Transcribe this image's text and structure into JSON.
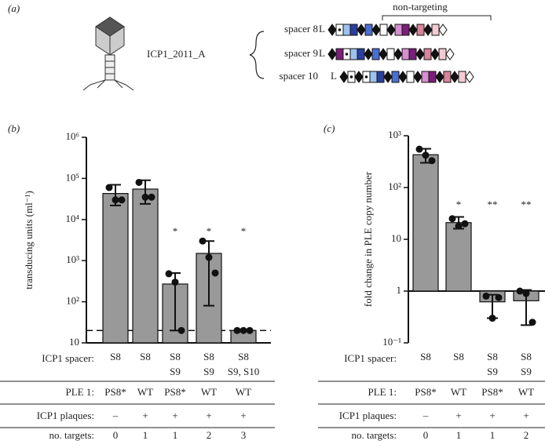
{
  "panel_a": {
    "label": "(a)",
    "phage": "ICP1_2011_A",
    "heading": "non-targeting",
    "spacers": [
      {
        "name": "spacer 8",
        "leader": "L"
      },
      {
        "name": "spacer 9",
        "leader": "L"
      },
      {
        "name": "spacer 10",
        "leader": "L"
      }
    ]
  },
  "chart_data": [
    {
      "type": "bar",
      "label": "(b)",
      "y_label": "transducing units (ml⁻¹)",
      "log_y": true,
      "color": "#999999",
      "ylim": [
        10,
        1000000
      ],
      "yticks": [
        10,
        {
          "value": 100,
          "label": "10²"
        },
        {
          "value": 1000,
          "label": "10³"
        },
        {
          "value": 10000,
          "label": "10⁴"
        },
        {
          "value": 100000,
          "label": "10⁵"
        },
        {
          "value": 1000000,
          "label": "10⁶"
        }
      ],
      "reference_line": 20,
      "categories": [
        [
          "S8"
        ],
        [
          "S8"
        ],
        [
          "S8",
          "S9"
        ],
        [
          "S8",
          "S9"
        ],
        [
          "S8",
          "S9, S10"
        ]
      ],
      "values": [
        43000,
        55000,
        270,
        1500,
        20
      ],
      "error_ranges": [
        [
          22000,
          70000
        ],
        [
          24000,
          90000
        ],
        [
          20,
          500
        ],
        [
          80,
          3000
        ],
        [
          20,
          20
        ]
      ],
      "points": [
        [
          60000,
          30000,
          30000
        ],
        [
          80000,
          35000,
          35000
        ],
        [
          480,
          300,
          20
        ],
        [
          3000,
          1200,
          500
        ],
        [
          20,
          20,
          20
        ]
      ],
      "annotations": [
        null,
        null,
        "*",
        "*",
        "*"
      ],
      "table_label": "ICP1 spacer:",
      "rows": [
        {
          "label": "PLE 1:",
          "cells": [
            "PS8*",
            "WT",
            "PS8*",
            "WT",
            "WT"
          ]
        },
        {
          "label": "ICP1 plaques:",
          "cells": [
            "–",
            "+",
            "+",
            "+",
            "+"
          ]
        },
        {
          "label": "no. targets:",
          "cells": [
            "0",
            "1",
            "1",
            "2",
            "3"
          ]
        }
      ]
    },
    {
      "type": "bar",
      "label": "(c)",
      "y_label": "fold change in PLE copy number",
      "log_y": true,
      "color": "#999999",
      "ylim": [
        0.1,
        1000
      ],
      "baseline": 1,
      "yticks": [
        {
          "value": 0.1,
          "label": "10⁻¹"
        },
        1,
        10,
        {
          "value": 100,
          "label": "10²"
        },
        {
          "value": 1000,
          "label": "10³"
        }
      ],
      "categories": [
        [
          "S8"
        ],
        [
          "S8"
        ],
        [
          "S8",
          "S9"
        ],
        [
          "S8",
          "S9"
        ]
      ],
      "values": [
        430,
        21,
        0.62,
        0.65
      ],
      "error_ranges": [
        [
          300,
          560
        ],
        [
          16,
          27
        ],
        [
          0.3,
          0.85
        ],
        [
          0.22,
          1.05
        ]
      ],
      "points": [
        [
          550,
          420,
          330
        ],
        [
          25,
          18,
          20
        ],
        [
          0.8,
          0.3,
          0.75
        ],
        [
          1,
          0.9,
          0.25
        ]
      ],
      "annotations": [
        null,
        "*",
        "**",
        "**"
      ],
      "table_label": "ICP1 spacer:",
      "rows": [
        {
          "label": "PLE 1:",
          "cells": [
            "PS8*",
            "WT",
            "PS8*",
            "WT"
          ]
        },
        {
          "label": "ICP1 plaques:",
          "cells": [
            "–",
            "+",
            "+",
            "+"
          ]
        },
        {
          "label": "no. targets:",
          "cells": [
            "0",
            "1",
            "1",
            "2"
          ]
        }
      ]
    }
  ]
}
